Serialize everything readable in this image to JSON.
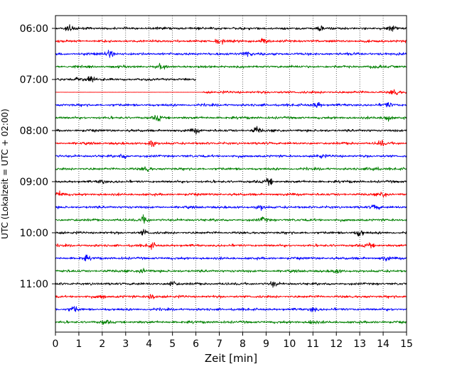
{
  "chart_data": {
    "type": "line",
    "title": "",
    "xlabel": "Zeit  [min]",
    "ylabel": "UTC (Lokalzeit = UTC + 02:00)",
    "xlim": [
      0,
      15
    ],
    "x_ticks": [
      0,
      1,
      2,
      3,
      4,
      5,
      6,
      7,
      8,
      9,
      10,
      11,
      12,
      13,
      14,
      15
    ],
    "x_tick_labels": [
      "0",
      "1",
      "2",
      "3",
      "4",
      "5",
      "6",
      "7",
      "8",
      "9",
      "10",
      "11",
      "12",
      "13",
      "14",
      "15"
    ],
    "y_ticks": [
      {
        "label": "06:00",
        "row": 0
      },
      {
        "label": "07:00",
        "row": 4
      },
      {
        "label": "08:00",
        "row": 8
      },
      {
        "label": "09:00",
        "row": 12
      },
      {
        "label": "10:00",
        "row": 16
      },
      {
        "label": "11:00",
        "row": 20
      }
    ],
    "row_minutes": 15,
    "grid": "vertical dotted at each minute",
    "row_colors": [
      "#000000",
      "#ff0000",
      "#0000ff",
      "#008000"
    ],
    "rows": [
      {
        "start": "06:00",
        "x_start": 0,
        "x_end": 15,
        "events": [
          {
            "x": 0.6,
            "amp": 5
          },
          {
            "x": 11.3,
            "amp": 5
          },
          {
            "x": 14.4,
            "amp": 6
          }
        ]
      },
      {
        "start": "06:15",
        "x_start": 0,
        "x_end": 15,
        "events": [
          {
            "x": 7.0,
            "amp": 6
          },
          {
            "x": 8.9,
            "amp": 5
          }
        ]
      },
      {
        "start": "06:30",
        "x_start": 0,
        "x_end": 15,
        "events": [
          {
            "x": 2.3,
            "amp": 7
          },
          {
            "x": 8.2,
            "amp": 5
          }
        ]
      },
      {
        "start": "06:45",
        "x_start": 0,
        "x_end": 15,
        "events": [
          {
            "x": 4.5,
            "amp": 3
          },
          {
            "x": 13.7,
            "amp": 3
          }
        ]
      },
      {
        "start": "07:00",
        "x_start": 0,
        "x_end": 6.0,
        "events": [
          {
            "x": 1.5,
            "amp": 6
          },
          {
            "x": 1.0,
            "amp": 4
          }
        ]
      },
      {
        "start": "07:15",
        "x_start": 0,
        "x_end": 15,
        "quiet_until": 6.3,
        "events": [
          {
            "x": 14.5,
            "amp": 6
          }
        ]
      },
      {
        "start": "07:30",
        "x_start": 0,
        "x_end": 15,
        "events": [
          {
            "x": 11.2,
            "amp": 5
          },
          {
            "x": 14.2,
            "amp": 4
          }
        ]
      },
      {
        "start": "07:45",
        "x_start": 0,
        "x_end": 15,
        "events": [
          {
            "x": 4.4,
            "amp": 5
          },
          {
            "x": 14.2,
            "amp": 5
          }
        ]
      },
      {
        "start": "08:00",
        "x_start": 0,
        "x_end": 15,
        "events": [
          {
            "x": 6.0,
            "amp": 4
          },
          {
            "x": 8.6,
            "amp": 6
          }
        ]
      },
      {
        "start": "08:15",
        "x_start": 0,
        "x_end": 15,
        "events": [
          {
            "x": 4.1,
            "amp": 5
          },
          {
            "x": 13.9,
            "amp": 5
          }
        ]
      },
      {
        "start": "08:30",
        "x_start": 0,
        "x_end": 15,
        "events": [
          {
            "x": 2.9,
            "amp": 4
          },
          {
            "x": 11.3,
            "amp": 4
          }
        ]
      },
      {
        "start": "08:45",
        "x_start": 0,
        "x_end": 15,
        "events": [
          {
            "x": 3.9,
            "amp": 5
          },
          {
            "x": 13.6,
            "amp": 4
          }
        ]
      },
      {
        "start": "09:00",
        "x_start": 0,
        "x_end": 15,
        "events": [
          {
            "x": 9.1,
            "amp": 6
          },
          {
            "x": 2.0,
            "amp": 4
          }
        ]
      },
      {
        "start": "09:15",
        "x_start": 0,
        "x_end": 15,
        "events": [
          {
            "x": 0.2,
            "amp": 5
          },
          {
            "x": 14.0,
            "amp": 4
          }
        ]
      },
      {
        "start": "09:30",
        "x_start": 0,
        "x_end": 15,
        "events": [
          {
            "x": 8.8,
            "amp": 4
          },
          {
            "x": 13.7,
            "amp": 4
          }
        ]
      },
      {
        "start": "09:45",
        "x_start": 0,
        "x_end": 15,
        "events": [
          {
            "x": 3.8,
            "amp": 7
          },
          {
            "x": 8.9,
            "amp": 5
          }
        ]
      },
      {
        "start": "10:00",
        "x_start": 0,
        "x_end": 15,
        "events": [
          {
            "x": 13.0,
            "amp": 7
          },
          {
            "x": 3.8,
            "amp": 4
          }
        ]
      },
      {
        "start": "10:15",
        "x_start": 0,
        "x_end": 15,
        "events": [
          {
            "x": 4.1,
            "amp": 5
          },
          {
            "x": 13.4,
            "amp": 4
          }
        ]
      },
      {
        "start": "10:30",
        "x_start": 0,
        "x_end": 15,
        "events": [
          {
            "x": 1.3,
            "amp": 4
          },
          {
            "x": 14.1,
            "amp": 4
          }
        ]
      },
      {
        "start": "10:45",
        "x_start": 0,
        "x_end": 15,
        "events": [
          {
            "x": 3.7,
            "amp": 4
          },
          {
            "x": 12.0,
            "amp": 4
          }
        ]
      },
      {
        "start": "11:00",
        "x_start": 0,
        "x_end": 15,
        "events": [
          {
            "x": 5.0,
            "amp": 5
          },
          {
            "x": 9.3,
            "amp": 5
          }
        ]
      },
      {
        "start": "11:15",
        "x_start": 0,
        "x_end": 15,
        "events": [
          {
            "x": 4.1,
            "amp": 6
          },
          {
            "x": 2.0,
            "amp": 4
          }
        ]
      },
      {
        "start": "11:30",
        "x_start": 0,
        "x_end": 15,
        "events": [
          {
            "x": 0.8,
            "amp": 5
          },
          {
            "x": 11.0,
            "amp": 4
          }
        ]
      },
      {
        "start": "11:45",
        "x_start": 0,
        "x_end": 15,
        "events": [
          {
            "x": 11.0,
            "amp": 4
          },
          {
            "x": 2.1,
            "amp": 3
          }
        ]
      }
    ]
  }
}
